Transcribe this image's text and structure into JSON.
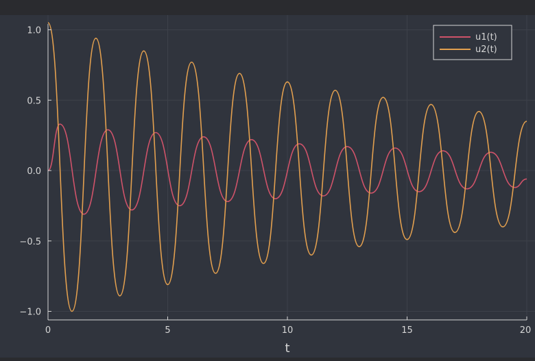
{
  "chart_data": {
    "type": "line",
    "title": "",
    "xlabel": "t",
    "ylabel": "",
    "xlim": [
      0,
      20
    ],
    "ylim": [
      -1.05,
      1.05
    ],
    "xticks": [
      0,
      5,
      10,
      15,
      20
    ],
    "xtick_labels": [
      "0",
      "5",
      "10",
      "15",
      "20"
    ],
    "yticks": [
      -1.0,
      -0.5,
      0.0,
      0.5,
      1.0
    ],
    "ytick_labels": [
      "−1.0",
      "−0.5",
      "0.0",
      "0.5",
      "1.0"
    ],
    "grid": true,
    "legend": {
      "position": "top-right",
      "labels": [
        "u1(t)",
        "u2(t)"
      ]
    },
    "colors": {
      "background": "#2a2b2f",
      "plot_area": "#30343d",
      "grid": "#3d414a",
      "axis": "#d6d6d6",
      "text": "#d6d6d6"
    },
    "series": [
      {
        "name": "u1(t)",
        "color": "#d0536a",
        "x": [
          0,
          0.5,
          1.5,
          2.5,
          3.5,
          4.5,
          5.5,
          6.5,
          7.5,
          8.5,
          9.5,
          10.5,
          11.5,
          12.5,
          13.5,
          14.5,
          15.5,
          16.5,
          17.5,
          18.5,
          19.5,
          20
        ],
        "y": [
          0.0,
          0.33,
          -0.31,
          0.29,
          -0.28,
          0.27,
          -0.25,
          0.24,
          -0.22,
          0.22,
          -0.2,
          0.19,
          -0.18,
          0.17,
          -0.16,
          0.16,
          -0.15,
          0.14,
          -0.13,
          0.13,
          -0.12,
          -0.06
        ]
      },
      {
        "name": "u2(t)",
        "color": "#e3a04f",
        "x": [
          0,
          1,
          2,
          3,
          4,
          5,
          6,
          7,
          8,
          9,
          10,
          11,
          12,
          13,
          14,
          15,
          16,
          17,
          18,
          19,
          20
        ],
        "y": [
          1.05,
          -1.0,
          0.94,
          -0.89,
          0.85,
          -0.81,
          0.77,
          -0.73,
          0.69,
          -0.66,
          0.63,
          -0.6,
          0.57,
          -0.54,
          0.52,
          -0.49,
          0.47,
          -0.44,
          0.42,
          -0.4,
          0.35
        ]
      }
    ]
  }
}
